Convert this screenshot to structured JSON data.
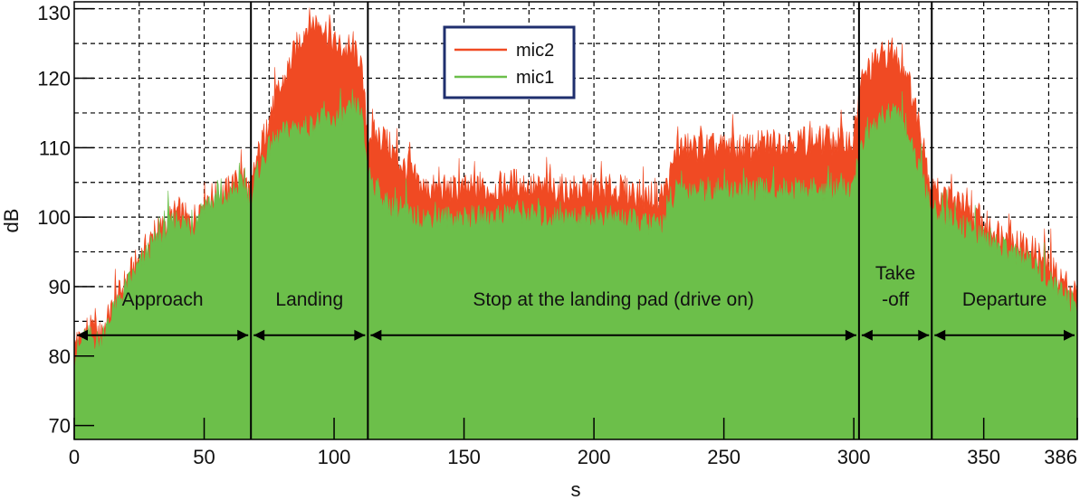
{
  "chart_data": {
    "type": "area",
    "title": "",
    "xlabel": "s",
    "ylabel": "dB",
    "xlim": [
      0,
      386
    ],
    "ylim": [
      68,
      131
    ],
    "x_ticks": [
      0,
      50,
      100,
      150,
      200,
      250,
      300,
      350,
      386
    ],
    "y_ticks": [
      70,
      80,
      90,
      100,
      110,
      120,
      130
    ],
    "grid": true,
    "legend_position": "top-center",
    "colors": {
      "mic2": "#f04a23",
      "mic1": "#6cbf4a",
      "legend_border": "#1f2f6e"
    },
    "series": [
      {
        "name": "mic2",
        "x": [
          0,
          5,
          10,
          15,
          20,
          25,
          30,
          35,
          40,
          45,
          50,
          55,
          60,
          65,
          68,
          70,
          75,
          80,
          85,
          90,
          95,
          100,
          105,
          110,
          113,
          115,
          120,
          125,
          130,
          135,
          140,
          145,
          150,
          160,
          170,
          180,
          190,
          200,
          210,
          220,
          225,
          228,
          232,
          240,
          250,
          260,
          270,
          280,
          290,
          300,
          302,
          305,
          310,
          315,
          320,
          325,
          330,
          335,
          340,
          345,
          350,
          355,
          360,
          365,
          370,
          375,
          380,
          386
        ],
        "values": [
          81,
          84,
          83,
          87,
          91,
          94,
          97,
          99,
          101,
          99,
          103,
          103,
          104,
          106,
          103,
          108,
          114,
          119,
          124,
          128,
          128,
          125,
          124,
          123,
          112,
          112,
          111,
          108,
          106,
          104,
          104,
          104,
          104,
          104,
          105,
          104,
          104,
          104,
          104,
          103,
          103,
          104,
          110,
          110,
          110,
          110,
          111,
          111,
          111,
          111,
          118,
          121,
          123,
          124,
          121,
          114,
          104,
          103,
          102,
          100,
          99,
          98,
          97,
          96,
          95,
          93,
          91,
          89
        ]
      },
      {
        "name": "mic1",
        "x": [
          0,
          5,
          10,
          15,
          20,
          25,
          30,
          35,
          40,
          45,
          50,
          55,
          60,
          65,
          68,
          70,
          75,
          80,
          85,
          90,
          95,
          100,
          105,
          110,
          113,
          115,
          120,
          125,
          130,
          135,
          140,
          145,
          150,
          160,
          170,
          180,
          190,
          200,
          210,
          220,
          225,
          228,
          232,
          240,
          250,
          260,
          270,
          280,
          290,
          300,
          302,
          305,
          310,
          315,
          320,
          325,
          330,
          335,
          340,
          345,
          350,
          355,
          360,
          365,
          370,
          375,
          380,
          386
        ],
        "values": [
          80,
          83,
          82,
          86,
          90,
          93,
          96,
          98,
          100,
          98,
          102,
          102,
          103,
          105,
          102,
          106,
          110,
          112,
          113,
          113,
          114,
          114,
          115,
          116,
          107,
          105,
          102,
          101,
          100,
          100,
          100,
          100,
          100,
          100,
          101,
          100,
          100,
          100,
          100,
          99,
          99,
          100,
          104,
          104,
          104,
          104,
          104,
          104,
          104,
          104,
          109,
          112,
          114,
          115,
          113,
          107,
          101,
          100,
          99,
          98,
          97,
          96,
          95,
          94,
          93,
          91,
          89,
          87
        ]
      }
    ],
    "phase_boundaries": [
      68,
      113,
      302,
      330
    ],
    "phases": [
      {
        "label": "Approach",
        "label2": "",
        "start": 0,
        "end": 68
      },
      {
        "label": "Landing",
        "label2": "",
        "start": 68,
        "end": 113
      },
      {
        "label": "Stop at the landing pad  (drive on)",
        "label2": "",
        "start": 113,
        "end": 302
      },
      {
        "label": "Take",
        "label2": "-off",
        "start": 302,
        "end": 330
      },
      {
        "label": "Departure",
        "label2": "",
        "start": 330,
        "end": 386
      }
    ],
    "phase_arrow_y": 83
  }
}
